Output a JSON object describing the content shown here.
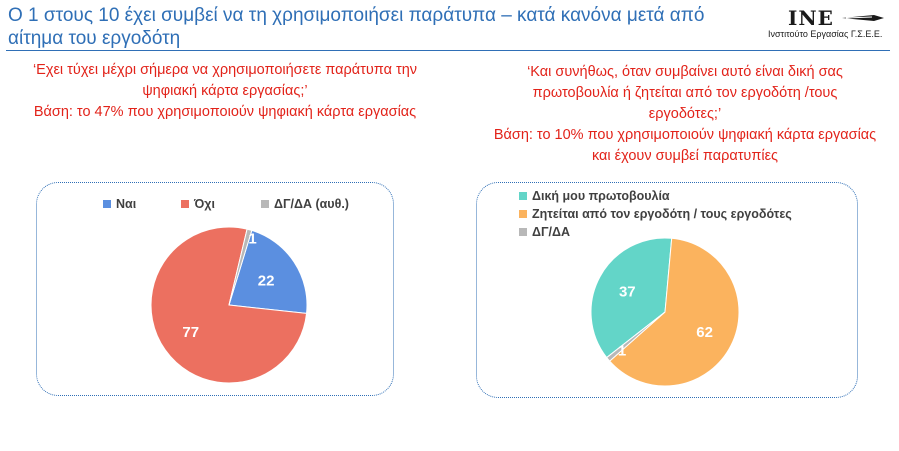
{
  "header": {
    "title_line1": "Ο 1 στους 10 έχει συμβεί να τη χρησιμοποιήσει παράτυπα – κατά κανόνα μετά από",
    "title_line2": "αίτημα του εργοδότη",
    "logo_mark": "INE",
    "logo_sub": "Ινστιτούτο Εργασίας Γ.Σ.Ε.Ε."
  },
  "left": {
    "question_line1": "‘Εχει τύχει μέχρι σήμερα να χρησιμοποιήσετε παράτυπα την",
    "question_line2": "ψηφιακή κάρτα εργασίας;’",
    "base": "Βάση: το 47% που χρησιμοποιούν ψηφιακή κάρτα εργασίας"
  },
  "right": {
    "question_line1": "‘Και συνήθως, όταν συμβαίνει αυτό είναι δική σας",
    "question_line2": "πρωτοβουλία ή ζητείται από τον εργοδότη /τους",
    "question_line3": "εργοδότες;’",
    "base_line1": "Βάση: το 10% που χρησιμοποιούν ψηφιακή κάρτα εργασίας",
    "base_line2": "και έχουν συμβεί παρατυπίες"
  },
  "chart_data": [
    {
      "type": "pie",
      "legend_position": "top",
      "slices": [
        {
          "label": "Ναι",
          "value": 22,
          "color": "#5b8fe0"
        },
        {
          "label": "Όχι",
          "value": 77,
          "color": "#ec7060"
        },
        {
          "label": "ΔΓ/ΔΑ (αυθ.)",
          "value": 1,
          "color": "#b8b8b8"
        }
      ]
    },
    {
      "type": "pie",
      "legend_position": "top-left",
      "slices": [
        {
          "label": "Δική μου πρωτοβουλία",
          "value": 37,
          "color": "#63d5c8"
        },
        {
          "label": "Ζητείται από τον εργοδότη / τους εργοδότες",
          "value": 62,
          "color": "#fbb35e"
        },
        {
          "label": "ΔΓ/ΔΑ",
          "value": 1,
          "color": "#b8b8b8"
        }
      ]
    }
  ]
}
